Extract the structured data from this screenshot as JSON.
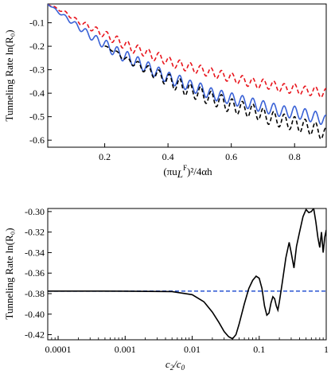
{
  "chart_data": [
    {
      "type": "line",
      "ylabel": "Tunneling Rate ln(R₀)",
      "xlabel_main": "(πu",
      "xlabel_sub": "L",
      "xlabel_sup": "F",
      "xlabel_tail": ")²/4αh",
      "xlim": [
        0.02,
        0.9
      ],
      "ylim": [
        -0.63,
        -0.02
      ],
      "xticks": [
        "0.2",
        "0.4",
        "0.6",
        "0.8"
      ],
      "xtick_values": [
        0.2,
        0.4,
        0.6,
        0.8
      ],
      "yticks": [
        "-0.1",
        "-0.2",
        "-0.3",
        "-0.4",
        "-0.5",
        "-0.6"
      ],
      "ytick_values": [
        -0.1,
        -0.2,
        -0.3,
        -0.4,
        -0.5,
        -0.6
      ],
      "grid": false,
      "series": [
        {
          "style": "dashed",
          "color": "#e8141c",
          "x": [
            0.02,
            0.05,
            0.08,
            0.11,
            0.14,
            0.17,
            0.2,
            0.23,
            0.26,
            0.29,
            0.32,
            0.35,
            0.38,
            0.41,
            0.44,
            0.47,
            0.5,
            0.53,
            0.56,
            0.59,
            0.62,
            0.65,
            0.68,
            0.71,
            0.74,
            0.77,
            0.8,
            0.83,
            0.86,
            0.89,
            0.9
          ],
          "y": [
            -0.02,
            -0.04,
            -0.06,
            -0.09,
            -0.11,
            -0.13,
            -0.15,
            -0.17,
            -0.19,
            -0.21,
            -0.22,
            -0.24,
            -0.25,
            -0.27,
            -0.28,
            -0.29,
            -0.3,
            -0.31,
            -0.32,
            -0.33,
            -0.34,
            -0.35,
            -0.36,
            -0.36,
            -0.37,
            -0.38,
            -0.38,
            -0.39,
            -0.39,
            -0.4,
            -0.4
          ],
          "wiggle_amp": 0.02,
          "wiggle_period": 0.033
        },
        {
          "style": "solid",
          "color": "#3a62d6",
          "x": [
            0.02,
            0.05,
            0.08,
            0.11,
            0.14,
            0.17,
            0.2,
            0.23,
            0.26,
            0.29,
            0.32,
            0.35,
            0.38,
            0.41,
            0.44,
            0.47,
            0.5,
            0.53,
            0.56,
            0.59,
            0.62,
            0.65,
            0.68,
            0.71,
            0.74,
            0.77,
            0.8,
            0.83,
            0.86,
            0.89,
            0.9
          ],
          "y": [
            -0.02,
            -0.05,
            -0.08,
            -0.11,
            -0.14,
            -0.17,
            -0.19,
            -0.22,
            -0.24,
            -0.26,
            -0.28,
            -0.3,
            -0.32,
            -0.34,
            -0.35,
            -0.37,
            -0.38,
            -0.4,
            -0.41,
            -0.42,
            -0.43,
            -0.44,
            -0.45,
            -0.46,
            -0.47,
            -0.48,
            -0.48,
            -0.49,
            -0.5,
            -0.51,
            -0.52
          ],
          "wiggle_amp": 0.025,
          "wiggle_period": 0.033
        },
        {
          "style": "dashed",
          "color": "#000000",
          "x": [
            0.2,
            0.23,
            0.26,
            0.29,
            0.32,
            0.35,
            0.38,
            0.41,
            0.44,
            0.47,
            0.5,
            0.53,
            0.56,
            0.59,
            0.62,
            0.65,
            0.68,
            0.71,
            0.74,
            0.77,
            0.8,
            0.83,
            0.86,
            0.89,
            0.9
          ],
          "y": [
            -0.2,
            -0.22,
            -0.25,
            -0.27,
            -0.29,
            -0.31,
            -0.33,
            -0.35,
            -0.37,
            -0.39,
            -0.4,
            -0.42,
            -0.43,
            -0.45,
            -0.46,
            -0.47,
            -0.48,
            -0.5,
            -0.51,
            -0.52,
            -0.53,
            -0.54,
            -0.55,
            -0.57,
            -0.58
          ],
          "wiggle_amp": 0.03,
          "wiggle_period": 0.033
        }
      ]
    },
    {
      "type": "line",
      "ylabel": "Tunneling Rate ln(R₀)",
      "xlabel_main": "c",
      "xlabel_sub1": "2",
      "xlabel_mid": "/c",
      "xlabel_sub2": "0",
      "xscale": "log",
      "xlim": [
        7e-05,
        1.0
      ],
      "ylim": [
        -0.425,
        -0.297
      ],
      "xticks": [
        "0.0001",
        "0.001",
        "0.01",
        "0.1",
        "1"
      ],
      "xtick_values": [
        0.0001,
        0.001,
        0.01,
        0.1,
        1
      ],
      "yticks": [
        "-0.30",
        "-0.32",
        "-0.34",
        "-0.36",
        "-0.38",
        "-0.40",
        "-0.42"
      ],
      "ytick_values": [
        -0.3,
        -0.32,
        -0.34,
        -0.36,
        -0.38,
        -0.4,
        -0.42
      ],
      "grid": false,
      "series": [
        {
          "style": "dashed",
          "color": "#3a62d6",
          "x": [
            7e-05,
            1.0
          ],
          "y": [
            -0.3775,
            -0.3775
          ]
        },
        {
          "style": "solid",
          "color": "#000000",
          "x": [
            7e-05,
            0.001,
            0.005,
            0.01,
            0.015,
            0.02,
            0.025,
            0.03,
            0.035,
            0.04,
            0.045,
            0.05,
            0.06,
            0.07,
            0.08,
            0.09,
            0.1,
            0.11,
            0.12,
            0.13,
            0.14,
            0.15,
            0.16,
            0.17,
            0.18,
            0.19,
            0.2,
            0.22,
            0.25,
            0.28,
            0.3,
            0.33,
            0.36,
            0.4,
            0.45,
            0.5,
            0.55,
            0.6,
            0.65,
            0.7,
            0.75,
            0.8,
            0.85,
            0.9,
            0.95,
            1.0
          ],
          "y": [
            -0.3775,
            -0.3776,
            -0.378,
            -0.381,
            -0.388,
            -0.398,
            -0.408,
            -0.417,
            -0.422,
            -0.424,
            -0.42,
            -0.41,
            -0.39,
            -0.375,
            -0.367,
            -0.363,
            -0.365,
            -0.375,
            -0.392,
            -0.401,
            -0.399,
            -0.389,
            -0.383,
            -0.385,
            -0.392,
            -0.396,
            -0.388,
            -0.37,
            -0.345,
            -0.33,
            -0.34,
            -0.355,
            -0.334,
            -0.32,
            -0.305,
            -0.298,
            -0.301,
            -0.3,
            -0.297,
            -0.31,
            -0.325,
            -0.335,
            -0.32,
            -0.34,
            -0.325,
            -0.318
          ]
        }
      ]
    }
  ]
}
